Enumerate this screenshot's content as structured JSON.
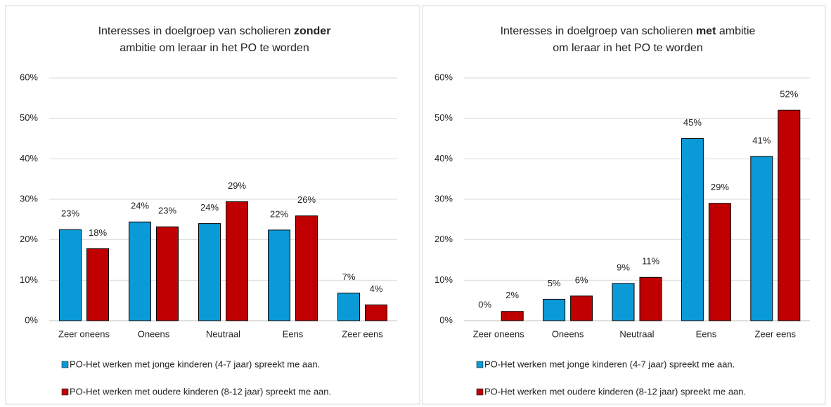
{
  "chart_data": [
    {
      "type": "bar",
      "title": [
        [
          {
            "text": "Interesses in doelgroep van scholieren "
          },
          {
            "text": "zonder",
            "bold": true
          }
        ],
        [
          {
            "text": "ambitie om leraar in het PO te worden"
          }
        ]
      ],
      "categories": [
        "Zeer oneens",
        "Oneens",
        "Neutraal",
        "Eens",
        "Zeer eens"
      ],
      "series": [
        {
          "name": "PO-Het werken met jonge kinderen (4-7 jaar) spreekt me aan.",
          "color": "#0a9ad7",
          "values": [
            22.5,
            24.4,
            24,
            22.4,
            6.8
          ],
          "value_labels": [
            "23%",
            "24%",
            "24%",
            "22%",
            "7%"
          ]
        },
        {
          "name": "PO-Het werken met oudere kinderen (8-12 jaar) spreekt me aan.",
          "color": "#c00000",
          "values": [
            17.8,
            23.2,
            29.4,
            25.9,
            3.9
          ],
          "value_labels": [
            "18%",
            "23%",
            "29%",
            "26%",
            "4%"
          ]
        }
      ],
      "ylim": [
        0,
        60
      ],
      "yticks": [
        {
          "value": 0,
          "label": "0%"
        },
        {
          "value": 10,
          "label": "10%"
        },
        {
          "value": 20,
          "label": "20%"
        },
        {
          "value": 30,
          "label": "30%"
        },
        {
          "value": 40,
          "label": "40%"
        },
        {
          "value": 50,
          "label": "50%"
        },
        {
          "value": 60,
          "label": "60%"
        }
      ],
      "grid": true,
      "legend": "bottom"
    },
    {
      "type": "bar",
      "title": [
        [
          {
            "text": "Interesses in doelgroep van scholieren "
          },
          {
            "text": "met",
            "bold": true
          },
          {
            "text": " ambitie"
          }
        ],
        [
          {
            "text": "om leraar in het PO te worden"
          }
        ]
      ],
      "categories": [
        "Zeer oneens",
        "Oneens",
        "Neutraal",
        "Eens",
        "Zeer eens"
      ],
      "series": [
        {
          "name": "PO-Het werken met jonge kinderen (4-7 jaar) spreekt me aan.",
          "color": "#0a9ad7",
          "values": [
            0,
            5.3,
            9.2,
            45,
            40.6
          ],
          "value_labels": [
            "0%",
            "5%",
            "9%",
            "45%",
            "41%"
          ]
        },
        {
          "name": "PO-Het werken met oudere kinderen (8-12 jaar) spreekt me aan.",
          "color": "#c00000",
          "values": [
            2.3,
            6.1,
            10.7,
            29,
            52
          ],
          "value_labels": [
            "2%",
            "6%",
            "11%",
            "29%",
            "52%"
          ]
        }
      ],
      "ylim": [
        0,
        60
      ],
      "yticks": [
        {
          "value": 0,
          "label": "0%"
        },
        {
          "value": 10,
          "label": "10%"
        },
        {
          "value": 20,
          "label": "20%"
        },
        {
          "value": 30,
          "label": "30%"
        },
        {
          "value": 40,
          "label": "40%"
        },
        {
          "value": 50,
          "label": "50%"
        },
        {
          "value": 60,
          "label": "60%"
        }
      ],
      "grid": true,
      "legend": "bottom"
    }
  ]
}
